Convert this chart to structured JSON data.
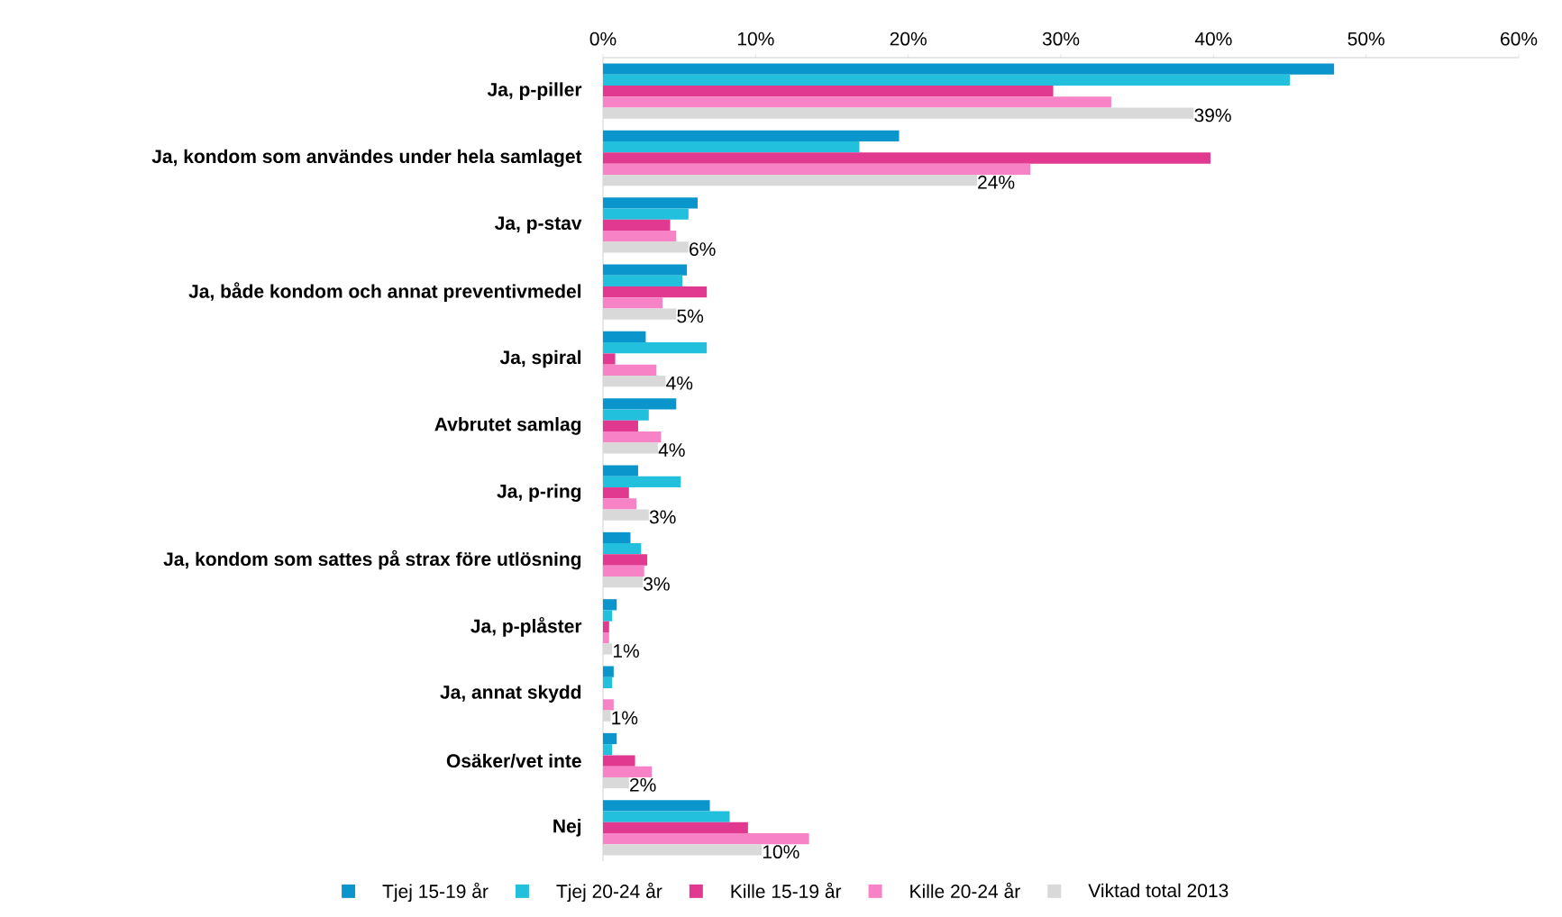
{
  "chart_data": {
    "type": "bar",
    "orientation": "horizontal",
    "legend": "bottom",
    "categories": [
      "Ja, p-piller",
      "Ja, kondom som användes under hela samlaget",
      "Ja, p-stav",
      "Ja, både kondom och annat preventivmedel",
      "Ja, spiral",
      "Avbrutet samlag",
      "Ja, p-ring",
      "Ja, kondom som sattes på strax före utlösning",
      "Ja, p-plåster",
      "Ja, annat skydd",
      "Osäker/vet inte",
      "Nej"
    ],
    "xlim": [
      0,
      60
    ],
    "xticks": [
      {
        "value": 0,
        "label": "0%"
      },
      {
        "value": 10,
        "label": "10%"
      },
      {
        "value": 20,
        "label": "20%"
      },
      {
        "value": 30,
        "label": "30%"
      },
      {
        "value": 40,
        "label": "40%"
      },
      {
        "value": 50,
        "label": "50%"
      },
      {
        "value": 60,
        "label": "60%"
      }
    ],
    "series": [
      {
        "name": "Tjej 15-19 år",
        "color": "#0a96cc",
        "values": [
          47.9,
          19.4,
          6.2,
          5.5,
          2.8,
          4.8,
          2.3,
          1.8,
          0.9,
          0.7,
          0.9,
          7.0
        ]
      },
      {
        "name": "Tjej 20-24 år",
        "color": "#22c0dc",
        "values": [
          45.0,
          16.8,
          5.6,
          5.2,
          6.8,
          3.0,
          5.1,
          2.5,
          0.6,
          0.6,
          0.6,
          8.3
        ]
      },
      {
        "name": "Kille 15-19 år",
        "color": "#e0398f",
        "values": [
          29.5,
          39.8,
          4.4,
          6.8,
          0.8,
          2.3,
          1.7,
          2.9,
          0.4,
          0,
          2.1,
          9.5
        ]
      },
      {
        "name": "Kille 20-24 år",
        "color": "#f783c6",
        "values": [
          33.3,
          28.0,
          4.8,
          3.9,
          3.5,
          3.8,
          2.2,
          2.7,
          0.4,
          0.7,
          3.2,
          13.5
        ]
      },
      {
        "name": "Viktad total 2013",
        "color": "#d9d9d9",
        "values": [
          38.7,
          24.5,
          5.6,
          4.8,
          4.1,
          3.6,
          3.0,
          2.6,
          0.6,
          0.5,
          1.7,
          10.4
        ],
        "value_labels": [
          "39%",
          "24%",
          "6%",
          "5%",
          "4%",
          "4%",
          "3%",
          "3%",
          "1%",
          "1%",
          "2%",
          "10%"
        ]
      }
    ]
  }
}
